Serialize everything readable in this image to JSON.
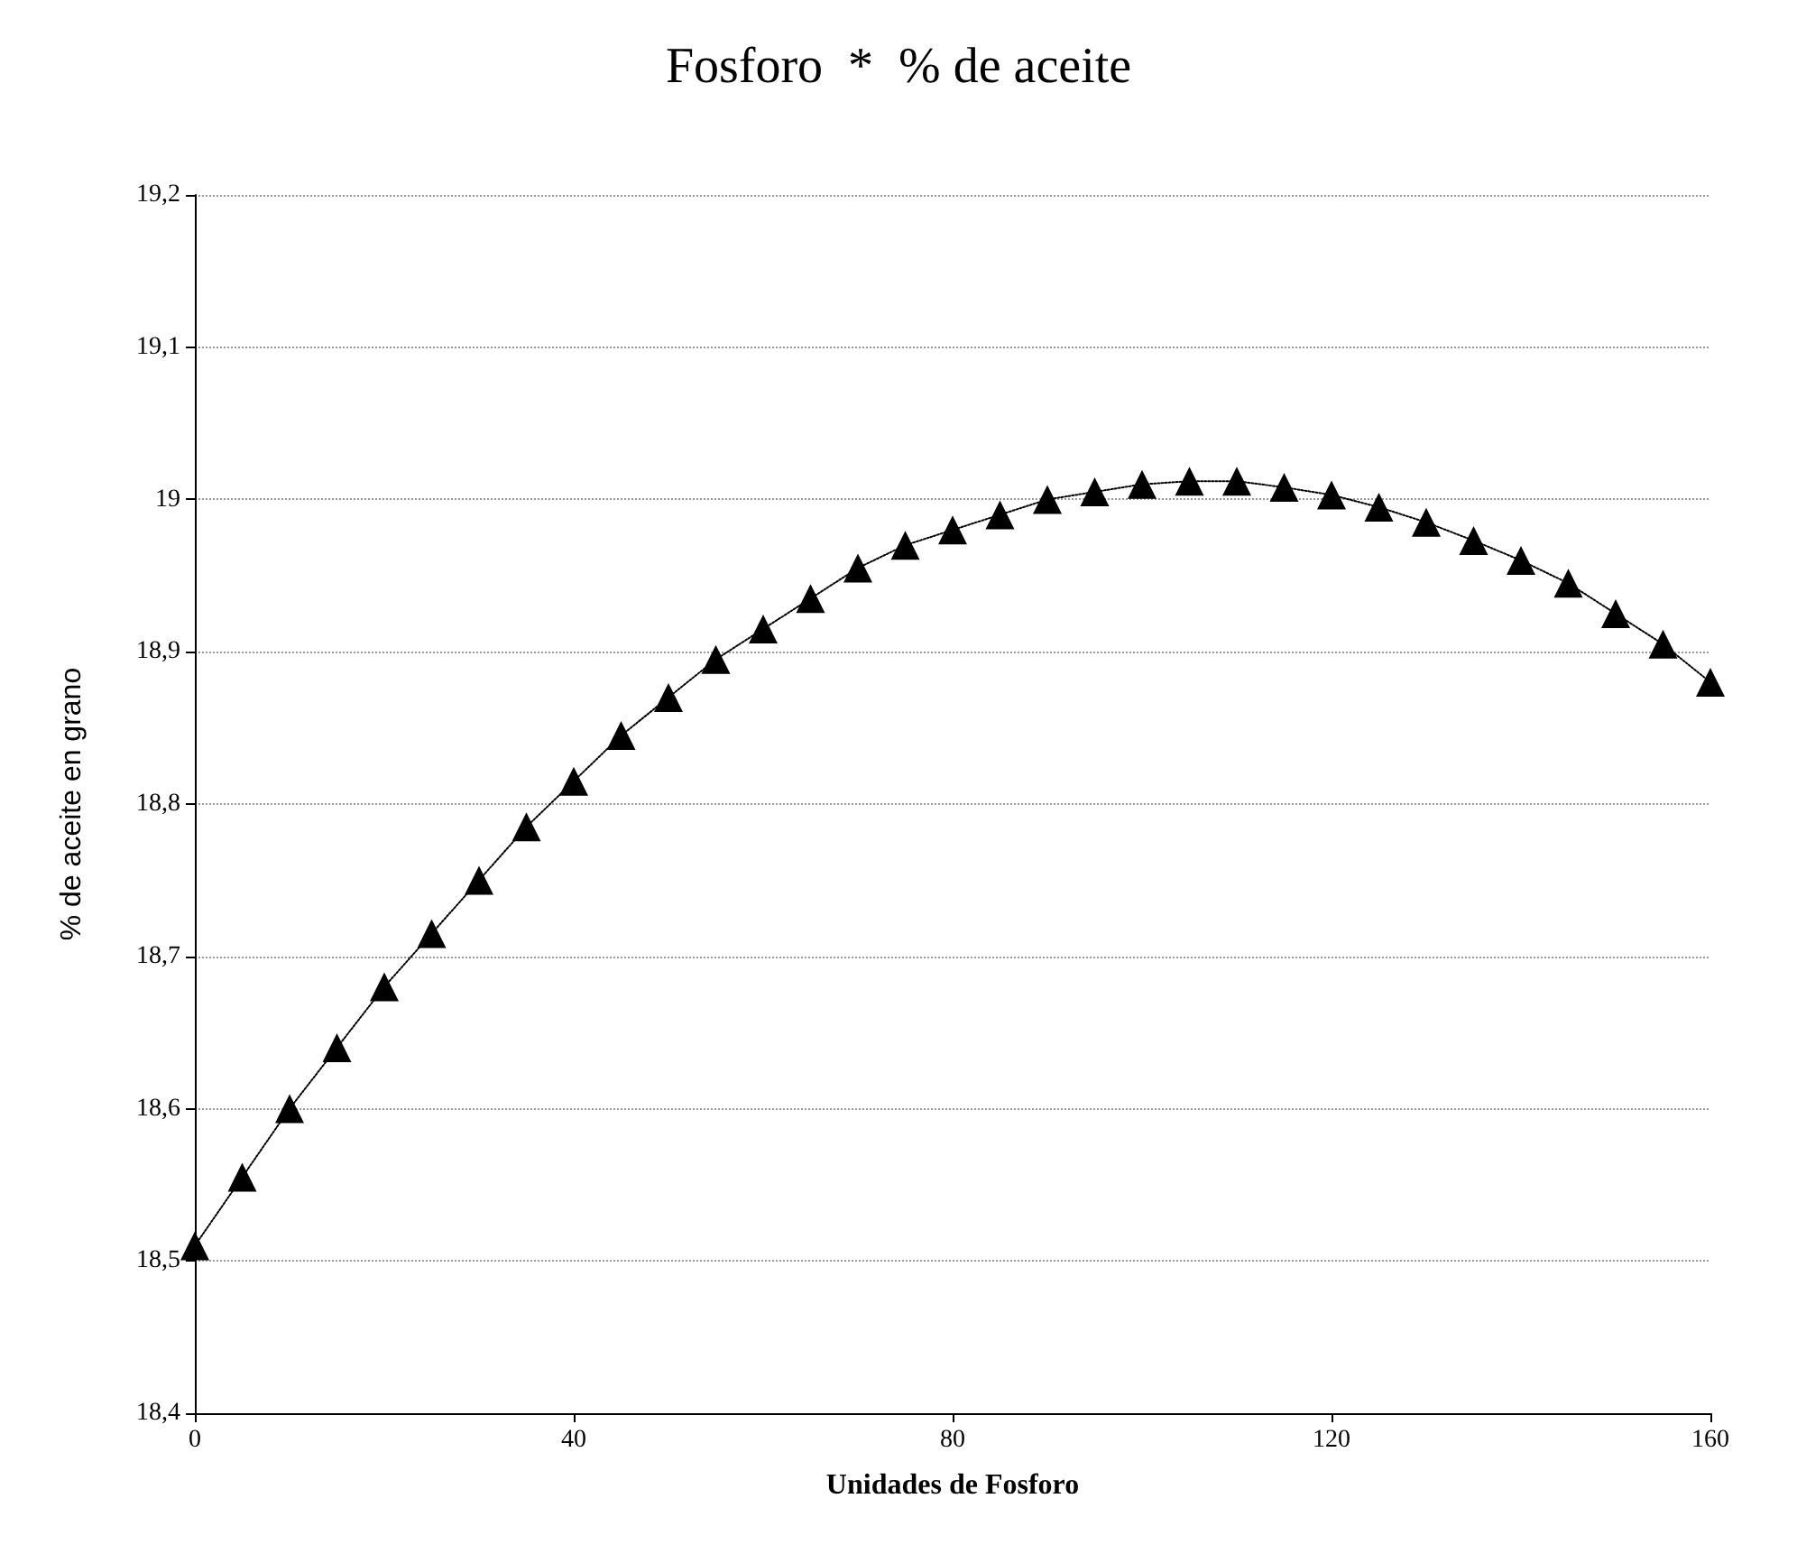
{
  "chart_data": {
    "type": "line",
    "title": "Fosforo  *  % de aceite",
    "xlabel": "Unidades de Fosforo",
    "ylabel": "% de aceite en grano",
    "x": [
      0,
      5,
      10,
      15,
      20,
      25,
      30,
      35,
      40,
      45,
      50,
      55,
      60,
      65,
      70,
      75,
      80,
      85,
      90,
      95,
      100,
      105,
      110,
      115,
      120,
      125,
      130,
      135,
      140,
      145,
      150,
      155,
      160
    ],
    "series": [
      {
        "color": "#000000",
        "values": [
          18.51,
          18.555,
          18.6,
          18.64,
          18.68,
          18.715,
          18.75,
          18.785,
          18.815,
          18.845,
          18.87,
          18.895,
          18.915,
          18.935,
          18.955,
          18.97,
          18.98,
          18.99,
          19.0,
          19.005,
          19.01,
          19.012,
          19.012,
          19.008,
          19.003,
          18.995,
          18.985,
          18.973,
          18.96,
          18.945,
          18.925,
          18.905,
          18.88
        ]
      }
    ],
    "xlim": [
      0,
      160
    ],
    "xticks": [
      0,
      40,
      80,
      120,
      160
    ],
    "ylim": [
      18.4,
      19.2
    ],
    "yticks": [
      {
        "value": 18.4,
        "label": "18,4"
      },
      {
        "value": 18.5,
        "label": "18,5"
      },
      {
        "value": 18.6,
        "label": "18,6"
      },
      {
        "value": 18.7,
        "label": "18,7"
      },
      {
        "value": 18.8,
        "label": "18,8"
      },
      {
        "value": 18.9,
        "label": "18,9"
      },
      {
        "value": 19,
        "label": "19"
      },
      {
        "value": 19.1,
        "label": "19,1"
      },
      {
        "value": 19.2,
        "label": "19,2"
      }
    ],
    "grid": "y",
    "marker": "triangle",
    "line_style": "dotted"
  }
}
